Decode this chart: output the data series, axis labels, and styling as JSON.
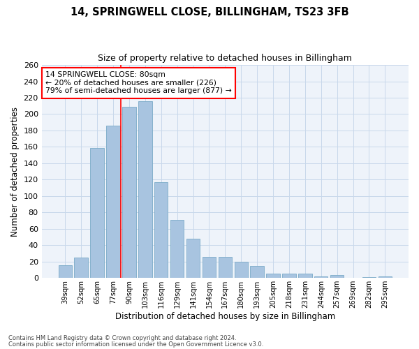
{
  "title": "14, SPRINGWELL CLOSE, BILLINGHAM, TS23 3FB",
  "subtitle": "Size of property relative to detached houses in Billingham",
  "xlabel": "Distribution of detached houses by size in Billingham",
  "ylabel": "Number of detached properties",
  "categories": [
    "39sqm",
    "52sqm",
    "65sqm",
    "77sqm",
    "90sqm",
    "103sqm",
    "116sqm",
    "129sqm",
    "141sqm",
    "154sqm",
    "167sqm",
    "180sqm",
    "193sqm",
    "205sqm",
    "218sqm",
    "231sqm",
    "244sqm",
    "257sqm",
    "269sqm",
    "282sqm",
    "295sqm"
  ],
  "values": [
    16,
    25,
    159,
    186,
    209,
    216,
    117,
    71,
    48,
    26,
    26,
    20,
    15,
    5,
    5,
    5,
    2,
    4,
    0,
    1,
    2
  ],
  "bar_color": "#a8c4e0",
  "bar_edge_color": "#7aaac8",
  "grid_color": "#c8d8eb",
  "bg_color": "#eef3fa",
  "vline_color": "red",
  "vline_x_idx": 3.5,
  "annotation_text": "14 SPRINGWELL CLOSE: 80sqm\n← 20% of detached houses are smaller (226)\n79% of semi-detached houses are larger (877) →",
  "annotation_box_color": "white",
  "annotation_box_edge": "red",
  "footnote1": "Contains HM Land Registry data © Crown copyright and database right 2024.",
  "footnote2": "Contains public sector information licensed under the Open Government Licence v3.0.",
  "ylim": [
    0,
    260
  ],
  "yticks": [
    0,
    20,
    40,
    60,
    80,
    100,
    120,
    140,
    160,
    180,
    200,
    220,
    240,
    260
  ]
}
